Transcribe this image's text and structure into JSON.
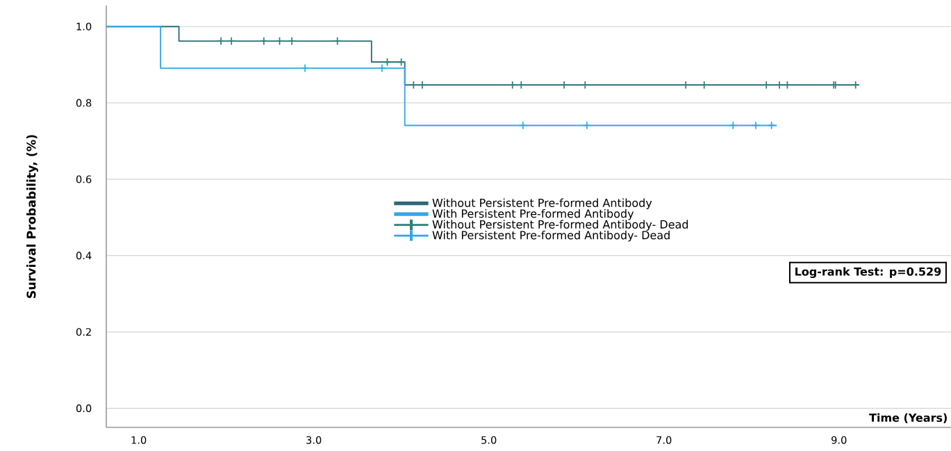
{
  "chart_data": {
    "type": "step",
    "xlabel": "Time (Years)",
    "ylabel": "Survival Probability, (%)",
    "xlim": [
      0.63,
      10.28
    ],
    "ylim": [
      -0.05,
      1.055
    ],
    "xticks": [
      {
        "value": 1,
        "label": "1.0"
      },
      {
        "value": 3,
        "label": "3.0"
      },
      {
        "value": 5,
        "label": "5.0"
      },
      {
        "value": 7,
        "label": "7.0"
      },
      {
        "value": 9,
        "label": "9.0"
      }
    ],
    "yticks": [
      {
        "value": 0,
        "label": "0.0"
      },
      {
        "value": 0.2,
        "label": "0.2"
      },
      {
        "value": 0.4,
        "label": "0.4"
      },
      {
        "value": 0.6,
        "label": "0.6"
      },
      {
        "value": 0.8,
        "label": "0.8"
      },
      {
        "value": 1.0,
        "label": "1.0"
      }
    ],
    "grid": "y",
    "legend": "center",
    "annotations": [
      "Log-rank Test: p=0.529"
    ],
    "series": [
      {
        "name": "Without Persistent Pre-formed Antibody",
        "marker": "none",
        "color": "#2b6c78",
        "x": [
          0.63,
          1.46,
          3.66,
          4.04,
          9.23
        ],
        "values": [
          1.0,
          0.962,
          0.907,
          0.847,
          0.847
        ]
      },
      {
        "name": "With Persistent Pre-formed Antibody",
        "marker": "none",
        "color": "#35a5e8",
        "x": [
          0.63,
          1.25,
          4.04,
          8.29
        ],
        "values": [
          1.0,
          0.891,
          0.741,
          0.741
        ]
      },
      {
        "name": "Without Persistent Pre-formed Antibody- Dead",
        "type": "scatter",
        "marker": "cross",
        "color": "#2e807a",
        "x": [
          1.94,
          2.06,
          2.43,
          2.61,
          2.75,
          3.27,
          3.84,
          4.0,
          4.14,
          4.24,
          5.27,
          5.37,
          5.86,
          6.1,
          7.25,
          7.46,
          8.17,
          8.32,
          8.41,
          8.94,
          8.96,
          9.19
        ],
        "values": [
          0.962,
          0.962,
          0.962,
          0.962,
          0.962,
          0.962,
          0.907,
          0.907,
          0.847,
          0.847,
          0.847,
          0.847,
          0.847,
          0.847,
          0.847,
          0.847,
          0.847,
          0.847,
          0.847,
          0.847,
          0.847,
          0.847
        ]
      },
      {
        "name": "With Persistent Pre-formed Antibody- Dead",
        "type": "scatter",
        "marker": "cross",
        "color": "#35a5e8",
        "x": [
          2.9,
          3.78,
          5.39,
          6.12,
          7.79,
          8.05,
          8.23
        ],
        "values": [
          0.891,
          0.891,
          0.741,
          0.741,
          0.741,
          0.741,
          0.741
        ]
      }
    ]
  }
}
